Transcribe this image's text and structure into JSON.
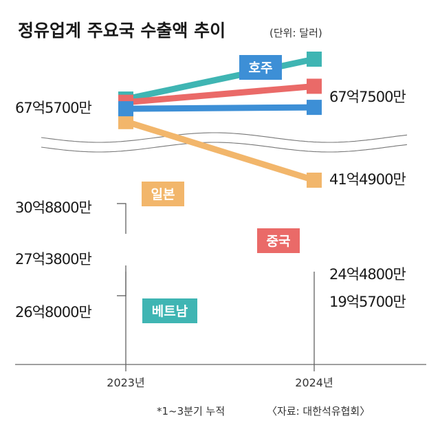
{
  "chart_data": {
    "type": "line",
    "title": "정유업계 주요국 수출액 추이",
    "unit": "(단위: 달러)",
    "x": [
      "2023년",
      "2024년"
    ],
    "series": [
      {
        "name": "호주",
        "values": [
          6757000000,
          6775000000
        ],
        "labels": [
          "67억5700만",
          "67억7500만"
        ],
        "color": "#3d8fd6"
      },
      {
        "name": "일본",
        "values": [
          3088000000,
          4149000000
        ],
        "labels": [
          "30억8800만",
          "41억4900만"
        ],
        "color": "#f2b66b"
      },
      {
        "name": "중국",
        "values": [
          2738000000,
          2448000000
        ],
        "labels": [
          "27억3800만",
          "24억4800만"
        ],
        "color": "#ea6a68"
      },
      {
        "name": "베트남",
        "values": [
          2680000000,
          1957000000
        ],
        "labels": [
          "26억8000만",
          "19억5700만"
        ],
        "color": "#3fb5b3"
      }
    ],
    "footnote": "*1~3분기 누적",
    "source": "〈자료: 대한석유협회〉",
    "axis_break": true
  }
}
